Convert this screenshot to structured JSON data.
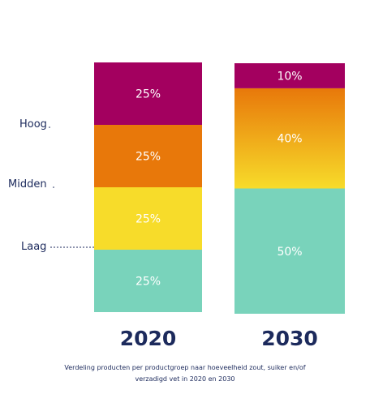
{
  "chart_data": {
    "type": "bar",
    "stacked": true,
    "categories": [
      "2020",
      "2030"
    ],
    "ylim": [
      0,
      100
    ],
    "series": [
      {
        "key": "low",
        "color": "#79d3bb",
        "values": [
          25,
          50
        ]
      },
      {
        "key": "mid",
        "color": "#f7dc2a",
        "values": [
          25,
          0
        ]
      },
      {
        "key": "upper",
        "color": "#e8780a",
        "values": [
          25,
          40
        ]
      },
      {
        "key": "high",
        "color": "#a3005f",
        "values": [
          25,
          10
        ]
      }
    ],
    "segment_labels": [
      [
        "25%",
        "25%",
        "25%",
        "25%"
      ],
      [
        "50%",
        "",
        "40%",
        "10%"
      ]
    ],
    "gradient_2030": {
      "top": "#e8780a",
      "bottom": "#f7dc2a"
    },
    "levels": [
      {
        "label": "Hoog",
        "boundary": 75
      },
      {
        "label": "Midden",
        "boundary": 50
      },
      {
        "label": "Laag",
        "boundary": 25
      }
    ]
  },
  "caption": {
    "line1": "Verdeling producten per productgroep naar hoeveelheid zout, suiker en/of",
    "line2": "verzadigd vet in 2020 en 2030"
  }
}
